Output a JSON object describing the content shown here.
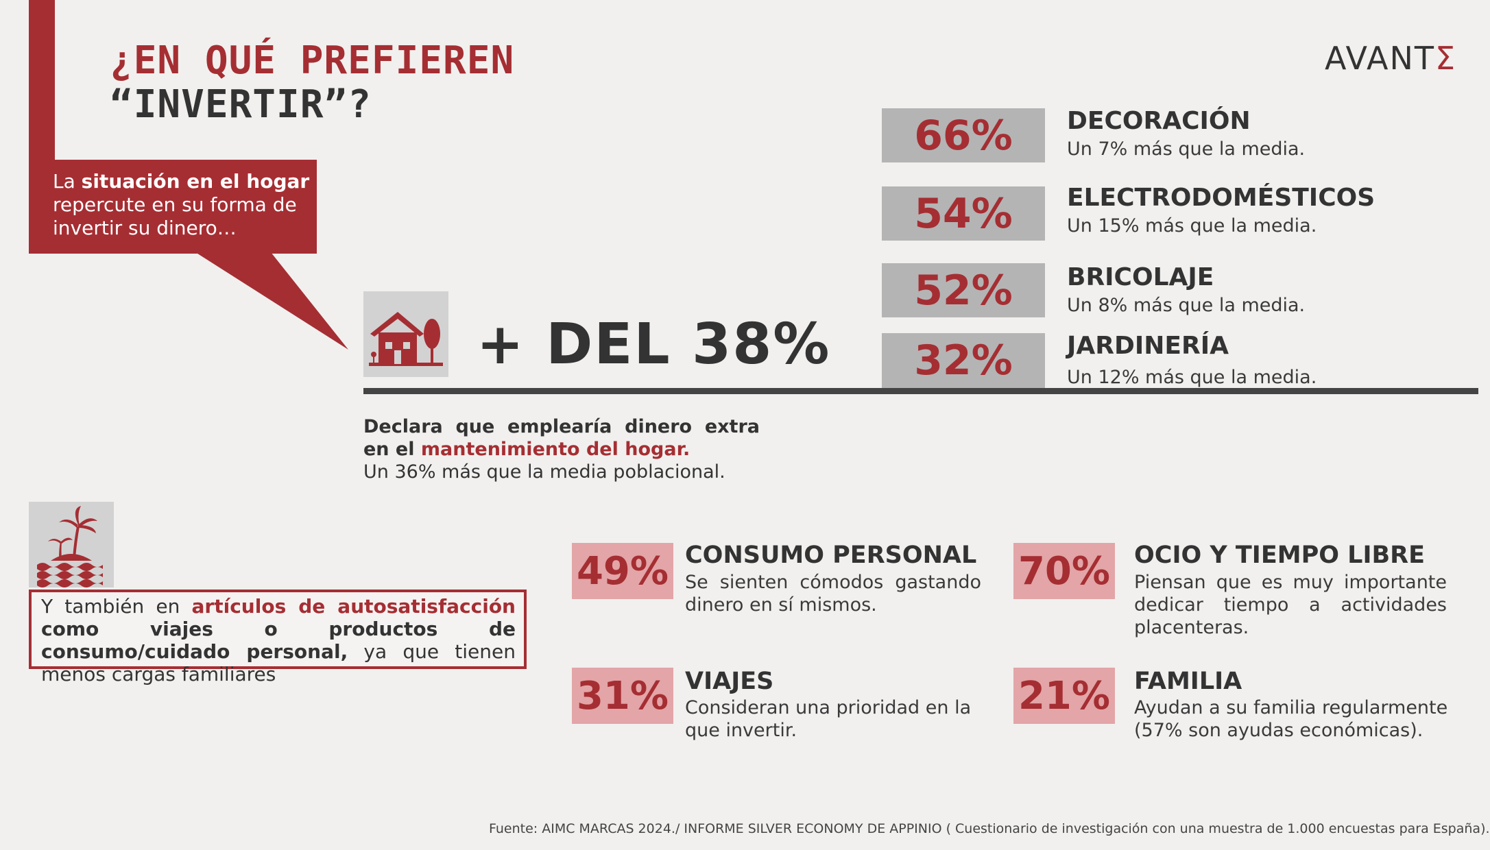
{
  "header": {
    "title_line1": "¿EN QUÉ PREFIEREN",
    "title_line2": "“INVERTIR”?",
    "logo_main": "AVANT",
    "logo_accent": "Σ"
  },
  "bubble": {
    "pre": "La ",
    "bold": "situación en el hogar",
    "post": " repercute en su forma de invertir su dinero…"
  },
  "home": {
    "headline": "+ DEL 38%",
    "declara_bold": "Declara que emplearía dinero extra en el ",
    "declara_red": "mantenimiento del hogar.",
    "declara_sub": "Un 36% más que la media poblacional."
  },
  "home_stats": [
    {
      "pct": "66%",
      "title": "DECORACIÓN",
      "sub": "Un 7% más que la media."
    },
    {
      "pct": "54%",
      "title": "ELECTRODOMÉSTICOS",
      "sub": "Un 15% más que la media."
    },
    {
      "pct": "52%",
      "title": "BRICOLAJE",
      "sub": "Un 8% más que la media."
    },
    {
      "pct": "32%",
      "title": "JARDINERÍA",
      "sub": "Un 12% más que la media."
    }
  ],
  "auto": {
    "pre": "Y también en ",
    "red": "artículos de autosatisfacción",
    "bold": " como viajes o productos de consumo/cuidado personal,",
    "post": " ya que tienen menos cargas familiares"
  },
  "other_stats": [
    {
      "pct": "49%",
      "title": "CONSUMO PERSONAL",
      "sub": "Se sienten cómodos gastando dinero en sí mismos."
    },
    {
      "pct": "70%",
      "title": "OCIO Y TIEMPO LIBRE",
      "sub": "Piensan que es muy importante dedicar tiempo a actividades placenteras."
    },
    {
      "pct": "31%",
      "title": "VIAJES",
      "sub": "Consideran una prioridad en la que invertir."
    },
    {
      "pct": "21%",
      "title": "FAMILIA",
      "sub": "Ayudan a su familia regularmente (57% son ayudas económicas)."
    }
  ],
  "source": "Fuente: AIMC MARCAS 2024./ INFORME SILVER ECONOMY DE APPINIO ( Cuestionario de investigación con una muestra de 1.000 encuestas para España).",
  "colors": {
    "accent": "#a52e33",
    "pink": "#e3a5a7",
    "grey_box": "#b4b4b4",
    "icon_bg": "#d2d2d2"
  },
  "icons": [
    "house-tree-icon",
    "palm-island-icon"
  ]
}
